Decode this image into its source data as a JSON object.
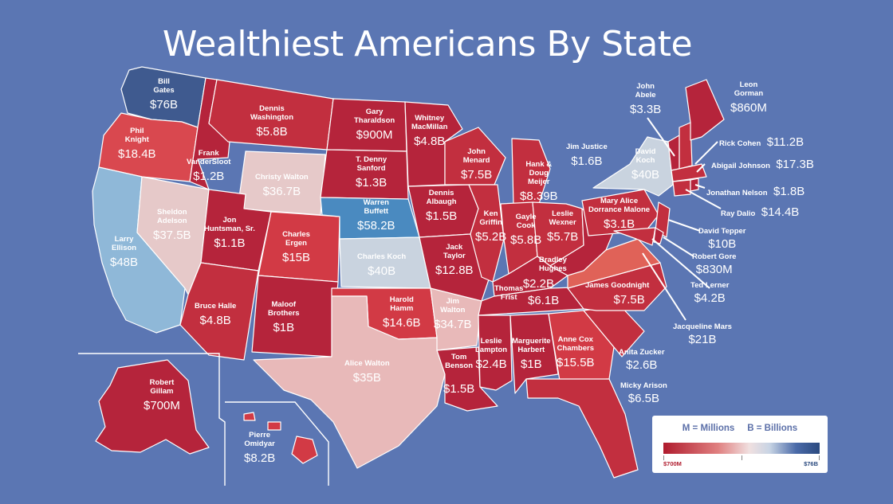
{
  "title": "Wealthiest Americans By State",
  "colors": {
    "background": "#5b76b3",
    "dark_red": "#b5243b",
    "red": "#d23a45",
    "pale": "#e6c9c9",
    "light_blue": "#8fb8d8",
    "blue": "#4a8ac0",
    "navy": "#3f5a8f"
  },
  "legend": {
    "text": "M = Millions     B = Billions",
    "min_label": "$700M",
    "max_label": "$76B"
  },
  "people": {
    "wa": {
      "name": [
        "Bill",
        "Gates"
      ],
      "value": "$76B"
    },
    "or": {
      "name": [
        "Phil",
        "Knight"
      ],
      "value": "$18.4B"
    },
    "ca": {
      "name": [
        "Larry",
        "Ellison"
      ],
      "value": "$48B"
    },
    "nv": {
      "name": [
        "Sheldon",
        "Adelson"
      ],
      "value": "$37.5B"
    },
    "id": {
      "name": [
        "Frank",
        "VanderSloot"
      ],
      "value": "$1.2B"
    },
    "mt": {
      "name": [
        "Dennis",
        "Washington"
      ],
      "value": "$5.8B"
    },
    "wy": {
      "name": [
        "Christy Walton"
      ],
      "value": "$36.7B"
    },
    "ut": {
      "name": [
        "Jon",
        "Huntsman, Sr."
      ],
      "value": "$1.1B"
    },
    "az": {
      "name": [
        "Bruce Halle"
      ],
      "value": "$4.8B"
    },
    "co": {
      "name": [
        "Charles",
        "Ergen"
      ],
      "value": "$15B"
    },
    "nm": {
      "name": [
        "Maloof",
        "Brothers"
      ],
      "value": "$1B"
    },
    "nd": {
      "name": [
        "Gary",
        "Tharaldson"
      ],
      "value": "$900M"
    },
    "sd": {
      "name": [
        "T. Denny",
        "Sanford"
      ],
      "value": "$1.3B"
    },
    "ne": {
      "name": [
        "Warren",
        "Buffett"
      ],
      "value": "$58.2B"
    },
    "ks": {
      "name": [
        "Charles Koch"
      ],
      "value": "$40B"
    },
    "ok": {
      "name": [
        "Harold",
        "Hamm"
      ],
      "value": "$14.6B"
    },
    "tx": {
      "name": [
        "Alice Walton"
      ],
      "value": "$35B"
    },
    "mn": {
      "name": [
        "Whitney",
        "MacMillan"
      ],
      "value": "$4.8B"
    },
    "ia": {
      "name": [
        "Dennis",
        "Albaugh"
      ],
      "value": "$1.5B"
    },
    "mo": {
      "name": [
        "Jack",
        "Taylor"
      ],
      "value": "$12.8B"
    },
    "ar": {
      "name": [
        "Jim",
        "Walton"
      ],
      "value": "$34.7B"
    },
    "la": {
      "name": [
        "Tom",
        "Benson"
      ],
      "value": "$1.5B"
    },
    "wi": {
      "name": [
        "John",
        "Menard"
      ],
      "value": "$7.5B"
    },
    "il": {
      "name": [
        "Ken",
        "Griffin"
      ],
      "value": "$5.2B"
    },
    "mi": {
      "name": [
        "Hank &",
        "Doug",
        "Meijer"
      ],
      "value": "$8.39B"
    },
    "in": {
      "name": [
        "Gayle",
        "Cook"
      ],
      "value": "$5.8B"
    },
    "oh": {
      "name": [
        "Leslie",
        "Wexner"
      ],
      "value": "$5.7B"
    },
    "ky": {
      "name": [
        "Bradley",
        "Hughes"
      ],
      "value": "$2.2B"
    },
    "tn": {
      "name": [
        "Thomas",
        "Frist"
      ],
      "value": "$6.1B"
    },
    "ms": {
      "name": [
        "Leslie",
        "Lampton"
      ],
      "value": "$2.4B"
    },
    "al": {
      "name": [
        "Marguerite",
        "Harbert"
      ],
      "value": "$1B"
    },
    "ga": {
      "name": [
        "Anne Cox",
        "Chambers"
      ],
      "value": "$15.5B"
    },
    "ak": {
      "name": [
        "Robert",
        "Gillam"
      ],
      "value": "$700M"
    },
    "hi": {
      "name": [
        "Pierre",
        "Omidyar"
      ],
      "value": "$8.2B"
    },
    "wv": {
      "name": [
        "Jim Justice"
      ],
      "value": "$1.6B"
    },
    "pa": {
      "name": [
        "Mary Alice",
        "Dorrance Malone"
      ],
      "value": "$3.1B"
    },
    "ny": {
      "name": [
        "David",
        "Koch"
      ],
      "value": "$40B"
    },
    "nc": {
      "name": [
        "James Goodnight"
      ],
      "value": "$7.5B"
    },
    "vt": {
      "name": [
        "John",
        "Abele"
      ],
      "value": "$3.3B"
    },
    "me": {
      "name": [
        "Leon",
        "Gorman"
      ],
      "value": "$860M"
    },
    "nh": {
      "name": [
        "Rick Cohen"
      ],
      "value": "$11.2B"
    },
    "ma": {
      "name": [
        "Abigail Johnson"
      ],
      "value": "$17.3B"
    },
    "ri": {
      "name": [
        "Jonathan Nelson"
      ],
      "value": "$1.8B"
    },
    "ct": {
      "name": [
        "Ray Dalio"
      ],
      "value": "$14.4B"
    },
    "nj": {
      "name": [
        "David Tepper"
      ],
      "value": "$10B"
    },
    "de": {
      "name": [
        "Robert Gore"
      ],
      "value": "$830M"
    },
    "md": {
      "name": [
        "Ted Lerner"
      ],
      "value": "$4.2B"
    },
    "va": {
      "name": [
        "Jacqueline Mars"
      ],
      "value": "$21B"
    },
    "sc": {
      "name": [
        "Anita Zucker"
      ],
      "value": "$2.6B"
    },
    "fl": {
      "name": [
        "Micky Arison"
      ],
      "value": "$6.5B"
    }
  }
}
